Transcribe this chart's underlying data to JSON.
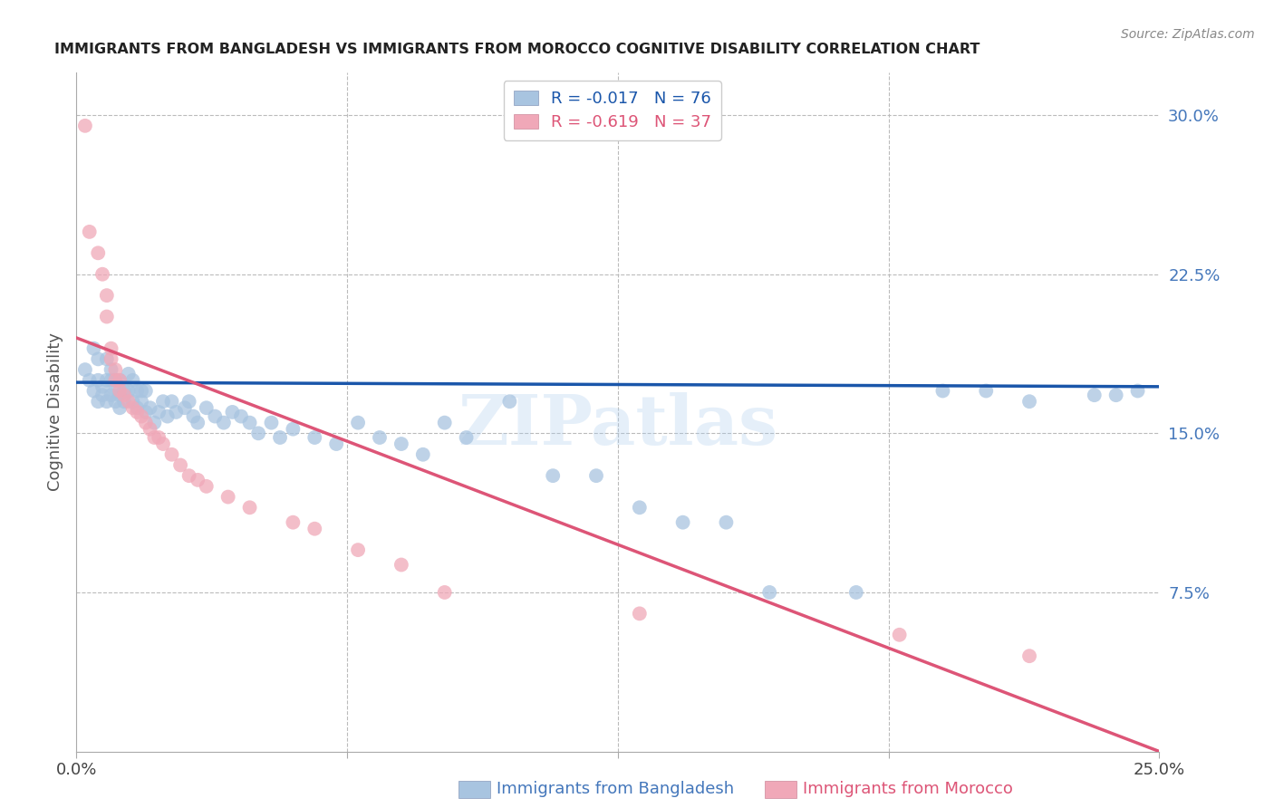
{
  "title": "IMMIGRANTS FROM BANGLADESH VS IMMIGRANTS FROM MOROCCO COGNITIVE DISABILITY CORRELATION CHART",
  "source": "Source: ZipAtlas.com",
  "ylabel": "Cognitive Disability",
  "legend1_label": "R = -0.017   N = 76",
  "legend2_label": "R = -0.619   N = 37",
  "watermark": "ZIPatlas",
  "xlim": [
    0.0,
    0.25
  ],
  "ylim": [
    0.0,
    0.32
  ],
  "blue_color": "#A8C4E0",
  "pink_color": "#F0A8B8",
  "line_blue": "#1A56AA",
  "line_pink": "#DD5577",
  "background": "#FFFFFF",
  "grid_color": "#BBBBBB",
  "title_color": "#222222",
  "right_axis_color": "#4477BB",
  "bangladesh_x": [
    0.002,
    0.003,
    0.004,
    0.004,
    0.005,
    0.005,
    0.005,
    0.006,
    0.006,
    0.007,
    0.007,
    0.007,
    0.008,
    0.008,
    0.008,
    0.009,
    0.009,
    0.009,
    0.01,
    0.01,
    0.01,
    0.011,
    0.011,
    0.012,
    0.012,
    0.013,
    0.013,
    0.014,
    0.014,
    0.015,
    0.015,
    0.016,
    0.016,
    0.017,
    0.018,
    0.019,
    0.02,
    0.021,
    0.022,
    0.023,
    0.025,
    0.026,
    0.027,
    0.028,
    0.03,
    0.032,
    0.034,
    0.036,
    0.038,
    0.04,
    0.042,
    0.045,
    0.047,
    0.05,
    0.055,
    0.06,
    0.065,
    0.07,
    0.075,
    0.08,
    0.085,
    0.09,
    0.1,
    0.11,
    0.12,
    0.13,
    0.14,
    0.15,
    0.16,
    0.18,
    0.2,
    0.21,
    0.22,
    0.235,
    0.24,
    0.245
  ],
  "bangladesh_y": [
    0.18,
    0.175,
    0.19,
    0.17,
    0.165,
    0.175,
    0.185,
    0.172,
    0.168,
    0.165,
    0.175,
    0.185,
    0.175,
    0.168,
    0.18,
    0.17,
    0.165,
    0.175,
    0.168,
    0.162,
    0.175,
    0.165,
    0.17,
    0.17,
    0.178,
    0.165,
    0.175,
    0.162,
    0.17,
    0.165,
    0.17,
    0.16,
    0.17,
    0.162,
    0.155,
    0.16,
    0.165,
    0.158,
    0.165,
    0.16,
    0.162,
    0.165,
    0.158,
    0.155,
    0.162,
    0.158,
    0.155,
    0.16,
    0.158,
    0.155,
    0.15,
    0.155,
    0.148,
    0.152,
    0.148,
    0.145,
    0.155,
    0.148,
    0.145,
    0.14,
    0.155,
    0.148,
    0.165,
    0.13,
    0.13,
    0.115,
    0.108,
    0.108,
    0.075,
    0.075,
    0.17,
    0.17,
    0.165,
    0.168,
    0.168,
    0.17
  ],
  "morocco_x": [
    0.002,
    0.003,
    0.005,
    0.006,
    0.007,
    0.007,
    0.008,
    0.008,
    0.009,
    0.009,
    0.01,
    0.01,
    0.011,
    0.012,
    0.013,
    0.014,
    0.015,
    0.016,
    0.017,
    0.018,
    0.019,
    0.02,
    0.022,
    0.024,
    0.026,
    0.028,
    0.03,
    0.035,
    0.04,
    0.05,
    0.055,
    0.065,
    0.075,
    0.085,
    0.13,
    0.19,
    0.22
  ],
  "morocco_y": [
    0.295,
    0.245,
    0.235,
    0.225,
    0.215,
    0.205,
    0.185,
    0.19,
    0.18,
    0.175,
    0.17,
    0.175,
    0.168,
    0.165,
    0.162,
    0.16,
    0.158,
    0.155,
    0.152,
    0.148,
    0.148,
    0.145,
    0.14,
    0.135,
    0.13,
    0.128,
    0.125,
    0.12,
    0.115,
    0.108,
    0.105,
    0.095,
    0.088,
    0.075,
    0.065,
    0.055,
    0.045
  ],
  "blue_line_x0": 0.0,
  "blue_line_x1": 0.25,
  "blue_line_y0": 0.174,
  "blue_line_y1": 0.172,
  "pink_line_x0": 0.0,
  "pink_line_x1": 0.25,
  "pink_line_y0": 0.195,
  "pink_line_y1": 0.0
}
